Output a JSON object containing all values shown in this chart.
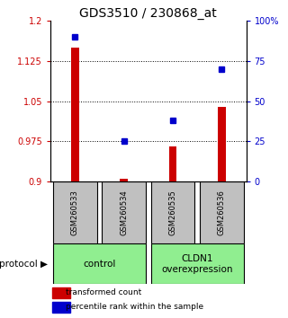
{
  "title": "GDS3510 / 230868_at",
  "samples": [
    "GSM260533",
    "GSM260534",
    "GSM260535",
    "GSM260536"
  ],
  "red_values": [
    1.15,
    0.905,
    0.965,
    1.04
  ],
  "blue_values": [
    90,
    25,
    38,
    70
  ],
  "ylim_left": [
    0.9,
    1.2
  ],
  "ylim_right": [
    0,
    100
  ],
  "yticks_left": [
    0.9,
    0.975,
    1.05,
    1.125,
    1.2
  ],
  "ytick_labels_left": [
    "0.9",
    "0.975",
    "1.05",
    "1.125",
    "1.2"
  ],
  "yticks_right": [
    0,
    25,
    50,
    75,
    100
  ],
  "ytick_labels_right": [
    "0",
    "25",
    "50",
    "75",
    "100%"
  ],
  "grid_yticks": [
    0.975,
    1.05,
    1.125
  ],
  "control_label": "control",
  "overexpr_label": "CLDN1\noverexpression",
  "protocol_label": "protocol",
  "legend_red": "transformed count",
  "legend_blue": "percentile rank within the sample",
  "red_color": "#cc0000",
  "blue_color": "#0000cc",
  "bar_base": 0.9,
  "sample_box_color": "#c0c0c0",
  "control_box_color": "#90ee90",
  "overexpr_box_color": "#90ee90",
  "title_fontsize": 10,
  "tick_fontsize": 7,
  "label_fontsize": 7.5
}
